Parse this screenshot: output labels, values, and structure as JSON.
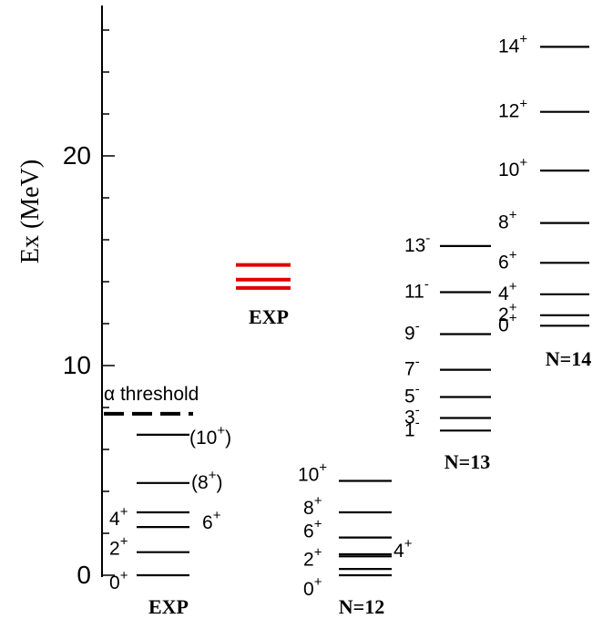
{
  "chart_data": {
    "type": "level-scheme",
    "ylabel": "Ex  (MeV)",
    "ylim": [
      0,
      27
    ],
    "yticks": [
      "0",
      "10",
      "20"
    ],
    "yticks_values": [
      0,
      10,
      20
    ],
    "minor_tick_step": 2,
    "threshold": {
      "label": "α threshold",
      "energy": 7.7,
      "style": "dashed"
    },
    "colors": {
      "axis": "#000000",
      "level": "#000000",
      "highlight": "#e00000",
      "text": "#000000"
    },
    "columns": [
      {
        "name": "EXP",
        "levels": [
          {
            "energy": 0.0,
            "spin": "0",
            "parity": "+",
            "label_side": "left",
            "paren": false
          },
          {
            "energy": 1.1,
            "spin": "2",
            "parity": "+",
            "label_side": "left",
            "paren": false
          },
          {
            "energy": 2.3,
            "spin": "4",
            "parity": "+",
            "label_side": "left",
            "paren": false
          },
          {
            "energy": 3.0,
            "spin": "6",
            "parity": "+",
            "label_side": "right",
            "paren": false
          },
          {
            "energy": 4.4,
            "spin": "8",
            "parity": "+",
            "label_side": "right",
            "paren": true
          },
          {
            "energy": 6.7,
            "spin": "10",
            "parity": "+",
            "label_side": "right",
            "paren": true
          }
        ]
      },
      {
        "name": "EXP",
        "highlight": true,
        "levels": [
          {
            "energy": 13.7,
            "spin": "",
            "parity": ""
          },
          {
            "energy": 14.1,
            "spin": "",
            "parity": ""
          },
          {
            "energy": 14.8,
            "spin": "",
            "parity": ""
          }
        ]
      },
      {
        "name": "N=12",
        "levels": [
          {
            "energy": 0.0,
            "spin": "0",
            "parity": "+",
            "label_side": "left"
          },
          {
            "energy": 0.3,
            "spin": "",
            "parity": ""
          },
          {
            "energy": 0.9,
            "spin": "2",
            "parity": "+",
            "label_side": "left"
          },
          {
            "energy": 1.0,
            "spin": "4",
            "parity": "+",
            "label_side": "right"
          },
          {
            "energy": 1.8,
            "spin": "6",
            "parity": "+",
            "label_side": "left"
          },
          {
            "energy": 3.0,
            "spin": "8",
            "parity": "+",
            "label_side": "left"
          },
          {
            "energy": 4.5,
            "spin": "10",
            "parity": "+",
            "label_side": "left"
          }
        ]
      },
      {
        "name": "N=13",
        "levels": [
          {
            "energy": 6.9,
            "spin": "1",
            "parity": "-",
            "label_side": "left"
          },
          {
            "energy": 7.5,
            "spin": "3",
            "parity": "-",
            "label_side": "left"
          },
          {
            "energy": 8.5,
            "spin": "5",
            "parity": "-",
            "label_side": "left"
          },
          {
            "energy": 9.8,
            "spin": "7",
            "parity": "-",
            "label_side": "left"
          },
          {
            "energy": 11.5,
            "spin": "9",
            "parity": "-",
            "label_side": "left"
          },
          {
            "energy": 13.5,
            "spin": "11",
            "parity": "-",
            "label_side": "left"
          },
          {
            "energy": 15.7,
            "spin": "13",
            "parity": "-",
            "label_side": "left"
          }
        ]
      },
      {
        "name": "N=14",
        "levels": [
          {
            "energy": 11.9,
            "spin": "0",
            "parity": "+",
            "label_side": "left"
          },
          {
            "energy": 12.4,
            "spin": "2",
            "parity": "+",
            "label_side": "left"
          },
          {
            "energy": 13.4,
            "spin": "4",
            "parity": "+",
            "label_side": "left"
          },
          {
            "energy": 14.9,
            "spin": "6",
            "parity": "+",
            "label_side": "left"
          },
          {
            "energy": 16.8,
            "spin": "8",
            "parity": "+",
            "label_side": "left"
          },
          {
            "energy": 19.3,
            "spin": "10",
            "parity": "+",
            "label_side": "left"
          },
          {
            "energy": 22.1,
            "spin": "12",
            "parity": "+",
            "label_side": "left"
          },
          {
            "energy": 25.2,
            "spin": "14",
            "parity": "+",
            "label_side": "left"
          }
        ]
      }
    ]
  }
}
